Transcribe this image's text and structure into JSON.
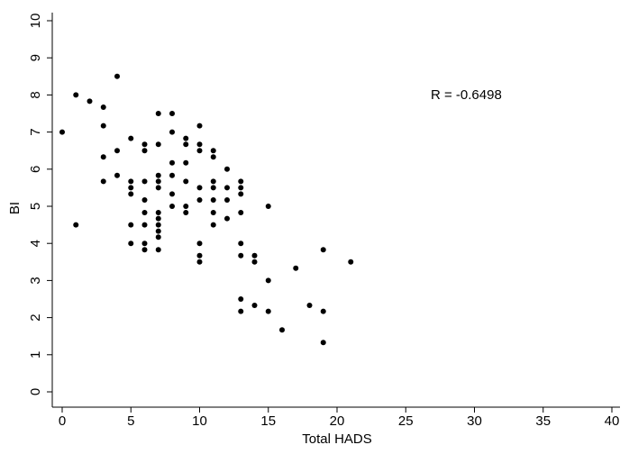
{
  "chart_data": {
    "type": "scatter",
    "x_label": "Total HADS",
    "y_label": "BI",
    "annotation": "R = -0.6498",
    "color": "#000000",
    "x": [
      0,
      1,
      1,
      2,
      3,
      3,
      3,
      3,
      4,
      4,
      4,
      5,
      5,
      5,
      5,
      5,
      5,
      6,
      6,
      6,
      6,
      6,
      6,
      6,
      6,
      7,
      7,
      7,
      7,
      7,
      7,
      7,
      7,
      7,
      7,
      7,
      8,
      8,
      8,
      8,
      8,
      8,
      9,
      9,
      9,
      9,
      9,
      9,
      10,
      10,
      10,
      10,
      10,
      10,
      10,
      10,
      11,
      11,
      11,
      11,
      11,
      11,
      11,
      12,
      12,
      12,
      12,
      13,
      13,
      13,
      13,
      13,
      13,
      13,
      13,
      14,
      14,
      14,
      15,
      15,
      15,
      16,
      17,
      18,
      19,
      19,
      19,
      21
    ],
    "values": [
      7,
      8,
      4.5,
      7.83,
      7.67,
      7.17,
      6.33,
      5.67,
      8.5,
      6.5,
      5.83,
      6.83,
      5.67,
      5.5,
      5.33,
      4.5,
      4,
      6.67,
      6.5,
      5.67,
      5.17,
      4.83,
      4.5,
      4,
      3.83,
      7.5,
      6.67,
      5.83,
      5.67,
      5.5,
      4.83,
      4.67,
      4.5,
      4.33,
      4.17,
      3.83,
      7.5,
      7,
      6.17,
      5.83,
      5.33,
      5,
      6.83,
      6.67,
      6.17,
      5.67,
      5,
      4.83,
      7.17,
      6.67,
      6.5,
      5.5,
      5.17,
      4,
      3.67,
      3.5,
      6.5,
      6.33,
      5.67,
      5.5,
      5.17,
      4.83,
      4.5,
      6,
      5.5,
      5.17,
      4.67,
      5.67,
      5.5,
      5.33,
      4.83,
      4,
      3.67,
      2.5,
      2.17,
      3.67,
      3.5,
      2.33,
      5,
      3,
      2.17,
      1.67,
      3.33,
      2.33,
      3.83,
      2.17,
      1.33,
      3.5
    ],
    "xlim": [
      0,
      40
    ],
    "xticks": [
      0,
      5,
      10,
      15,
      20,
      25,
      30,
      35,
      40
    ],
    "ylim": [
      0,
      10
    ],
    "yticks": [
      0,
      1,
      2,
      3,
      4,
      5,
      6,
      7,
      8,
      9,
      10
    ]
  }
}
